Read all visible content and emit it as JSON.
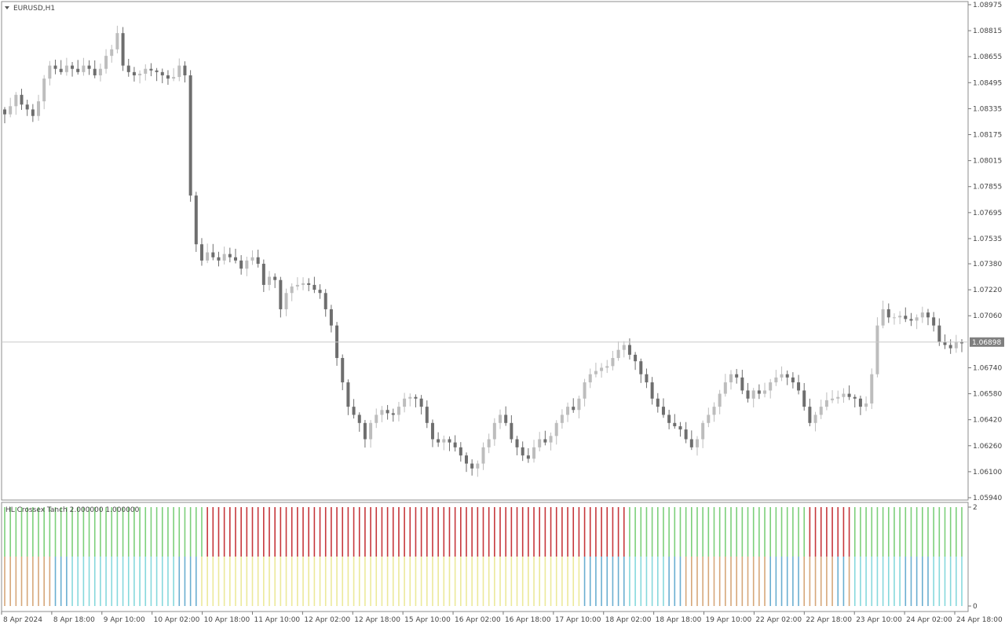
{
  "window": {
    "symbol_title": "EURUSD,H1",
    "indicator_title": "HL Crossex Tanch 2.000000 1.000000",
    "current_price": "1.06898"
  },
  "colors": {
    "bull_candle": "#bdbdbd",
    "bear_candle": "#6e6e6e",
    "green": "#7ccf7a",
    "red": "#c6373b",
    "tan": "#d6a77a",
    "blue": "#6aaed0",
    "cyan": "#86d8dc",
    "yellow": "#ece99a",
    "price_badge": "#7f7f7f"
  },
  "chart_data": [
    {
      "type": "candlestick",
      "title": "EURUSD,H1",
      "ylim": [
        1.0594,
        1.0897
      ],
      "y_ticks": [
        "1.08975",
        "1.08815",
        "1.08655",
        "1.08495",
        "1.08335",
        "1.08175",
        "1.08015",
        "1.07855",
        "1.07695",
        "1.07535",
        "1.07380",
        "1.07220",
        "1.07060",
        "1.06740",
        "1.06580",
        "1.06420",
        "1.06260",
        "1.06100",
        "1.05940"
      ],
      "x_ticks": [
        "8 Apr 2024",
        "8 Apr 18:00",
        "9 Apr 10:00",
        "10 Apr 02:00",
        "10 Apr 18:00",
        "11 Apr 10:00",
        "12 Apr 02:00",
        "12 Apr 18:00",
        "15 Apr 10:00",
        "16 Apr 02:00",
        "16 Apr 18:00",
        "17 Apr 10:00",
        "18 Apr 02:00",
        "18 Apr 18:00",
        "19 Apr 10:00",
        "22 Apr 02:00",
        "22 Apr 18:00",
        "23 Apr 10:00",
        "24 Apr 02:00",
        "24 Apr 18:00"
      ],
      "current_price": 1.06898,
      "close_path": [
        1.083,
        1.0835,
        1.0842,
        1.0836,
        1.0833,
        1.0829,
        1.0838,
        1.0852,
        1.086,
        1.0858,
        1.0856,
        1.086,
        1.0858,
        1.0856,
        1.086,
        1.0858,
        1.0854,
        1.0858,
        1.0866,
        1.087,
        1.088,
        1.086,
        1.0856,
        1.0854,
        1.0855,
        1.0858,
        1.0857,
        1.0856,
        1.0854,
        1.0852,
        1.0853,
        1.086,
        1.0854,
        1.078,
        1.075,
        1.074,
        1.0745,
        1.0742,
        1.074,
        1.0744,
        1.0742,
        1.074,
        1.0735,
        1.074,
        1.0742,
        1.0738,
        1.0725,
        1.073,
        1.0728,
        1.071,
        1.072,
        1.0724,
        1.0725,
        1.0726,
        1.0725,
        1.0722,
        1.072,
        1.071,
        1.07,
        1.068,
        1.0665,
        1.065,
        1.0645,
        1.064,
        1.063,
        1.064,
        1.0645,
        1.0648,
        1.0646,
        1.0645,
        1.065,
        1.0655,
        1.0656,
        1.0655,
        1.065,
        1.064,
        1.063,
        1.0628,
        1.063,
        1.0628,
        1.0625,
        1.062,
        1.0615,
        1.0612,
        1.0615,
        1.0625,
        1.063,
        1.064,
        1.0645,
        1.064,
        1.063,
        1.0625,
        1.062,
        1.0618,
        1.0625,
        1.063,
        1.0628,
        1.0632,
        1.064,
        1.0645,
        1.065,
        1.0648,
        1.0655,
        1.0665,
        1.067,
        1.0672,
        1.0674,
        1.0675,
        1.068,
        1.0685,
        1.0688,
        1.0682,
        1.0678,
        1.067,
        1.0665,
        1.0655,
        1.065,
        1.0645,
        1.064,
        1.0638,
        1.0636,
        1.063,
        1.0625,
        1.063,
        1.064,
        1.0645,
        1.065,
        1.0658,
        1.0665,
        1.067,
        1.0668,
        1.066,
        1.0655,
        1.066,
        1.0658,
        1.066,
        1.0665,
        1.0668,
        1.067,
        1.0668,
        1.0665,
        1.066,
        1.065,
        1.064,
        1.0645,
        1.065,
        1.0654,
        1.0655,
        1.0656,
        1.0658,
        1.0656,
        1.0655,
        1.065,
        1.0652,
        1.067,
        1.07,
        1.071,
        1.0705,
        1.0705,
        1.0706,
        1.0704,
        1.0703,
        1.0705,
        1.0708,
        1.0705,
        1.07,
        1.069,
        1.0688,
        1.0686,
        1.069,
        1.0689
      ]
    },
    {
      "type": "bar",
      "title": "HL Crossex Tanch 2.000000 1.000000",
      "ylim": [
        0,
        2
      ],
      "y_ticks": [
        "2",
        "0"
      ],
      "upper_segments": [
        {
          "color": "green",
          "span": [
            0.0,
            0.2095
          ]
        },
        {
          "color": "red",
          "span": [
            0.2095,
            0.6025
          ]
        },
        {
          "color": "red",
          "span": [
            0.6025,
            0.6515
          ]
        },
        {
          "color": "green",
          "span": [
            0.6515,
            0.8384
          ]
        },
        {
          "color": "red",
          "span": [
            0.8384,
            0.8873
          ]
        },
        {
          "color": "green",
          "span": [
            0.8873,
            1.0
          ]
        }
      ],
      "lower_segments": [
        {
          "color": "tan",
          "span": [
            0.0,
            0.05
          ]
        },
        {
          "color": "blue",
          "span": [
            0.05,
            0.07
          ]
        },
        {
          "color": "cyan",
          "span": [
            0.07,
            0.18
          ]
        },
        {
          "color": "blue",
          "span": [
            0.18,
            0.2
          ]
        },
        {
          "color": "yellow",
          "span": [
            0.2,
            0.6
          ]
        },
        {
          "color": "blue",
          "span": [
            0.6,
            0.65
          ]
        },
        {
          "color": "cyan",
          "span": [
            0.65,
            0.69
          ]
        },
        {
          "color": "blue",
          "span": [
            0.69,
            0.71
          ]
        },
        {
          "color": "tan",
          "span": [
            0.71,
            0.795
          ]
        },
        {
          "color": "blue",
          "span": [
            0.795,
            0.83
          ]
        },
        {
          "color": "tan",
          "span": [
            0.83,
            0.866
          ]
        },
        {
          "color": "blue",
          "span": [
            0.866,
            0.88
          ]
        },
        {
          "color": "tan",
          "span": [
            0.88,
            0.887
          ]
        },
        {
          "color": "cyan",
          "span": [
            0.887,
            0.94
          ]
        },
        {
          "color": "blue",
          "span": [
            0.94,
            0.97
          ]
        },
        {
          "color": "cyan",
          "span": [
            0.97,
            1.0
          ]
        }
      ]
    }
  ]
}
